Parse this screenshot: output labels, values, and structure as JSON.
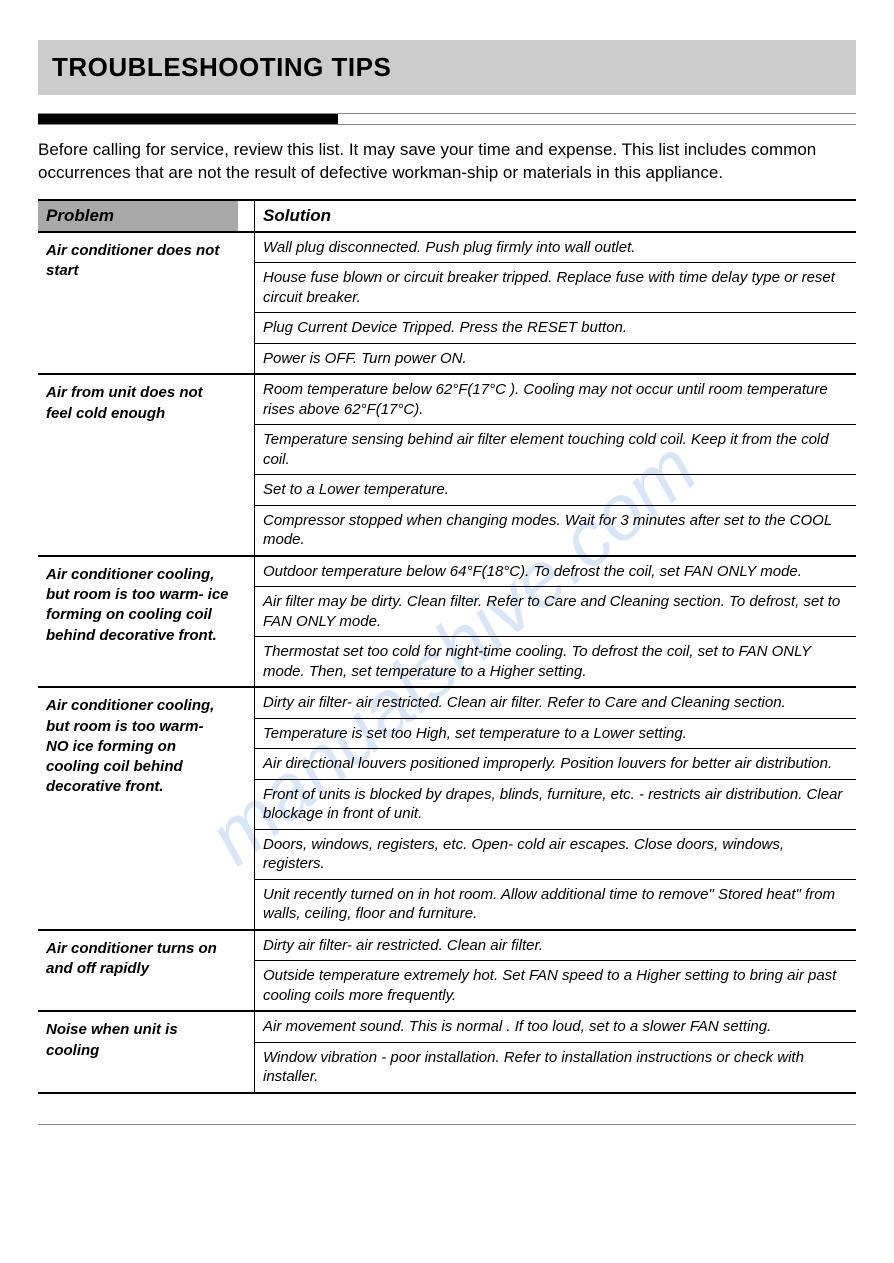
{
  "title": "TROUBLESHOOTING TIPS",
  "intro": "Before calling for service, review this list. It may save your time and expense. This list includes common occurrences that are not the result of defective workman-ship or materials in this appliance.",
  "headers": {
    "problem": "Problem",
    "solution": "Solution"
  },
  "colors": {
    "title_bg": "#cccccc",
    "header_problem_bg": "#a8a8a8",
    "border_heavy": "#000000",
    "border_light": "#888888",
    "watermark": "#7aa8e6"
  },
  "groups": [
    {
      "problem": "Air conditioner does not start",
      "solutions": [
        "Wall plug disconnected. Push plug firmly into wall outlet.",
        "House fuse blown or circuit breaker tripped. Replace fuse with time delay type or reset circuit breaker.",
        "Plug Current Device Tripped. Press the RESET button.",
        "Power is OFF. Turn power ON."
      ]
    },
    {
      "problem": "Air from unit does not feel cold enough",
      "solutions": [
        "Room temperature below 62°F(17°C ). Cooling may not occur until room temperature rises above 62°F(17°C).",
        "Temperature sensing behind air filter element touching cold coil. Keep it from the cold coil.",
        "Set to a Lower temperature.",
        "Compressor stopped when changing modes. Wait for 3 minutes after set to the COOL mode."
      ]
    },
    {
      "problem": "Air conditioner cooling, but room is too warm- ice forming on cooling coil behind decorative front.",
      "solutions": [
        "Outdoor  temperature below 64°F(18°C). To defrost the coil, set FAN ONLY mode.",
        "Air filter may be dirty. Clean filter. Refer to Care and Cleaning section. To defrost, set to FAN ONLY mode.",
        "Thermostat set too cold for night-time cooling. To defrost the coil, set to FAN ONLY mode. Then, set temperature to a Higher setting."
      ]
    },
    {
      "problem": "Air conditioner cooling, but room is too warm- NO ice forming on cooling coil behind decorative front.",
      "solutions": [
        "Dirty air filter- air restricted. Clean air filter. Refer to Care and Cleaning section.",
        "Temperature is set too High, set temperature to a Lower setting.",
        "Air directional louvers positioned improperly. Position louvers for better air distribution.",
        "Front of units is blocked by drapes, blinds, furniture, etc. - restricts air distribution. Clear blockage in front of unit.",
        "Doors, windows, registers, etc. Open- cold air escapes. Close doors, windows, registers.",
        "Unit recently turned on in hot room. Allow additional time to remove\" Stored heat\" from walls, ceiling, floor and furniture."
      ]
    },
    {
      "problem": "Air conditioner turns on and off rapidly",
      "solutions": [
        "Dirty air filter- air restricted. Clean air filter.",
        "Outside temperature extremely hot. Set FAN speed to a Higher setting to bring air past cooling coils more frequently."
      ]
    },
    {
      "problem": "Noise when unit is cooling",
      "solutions": [
        "Air movement sound. This is normal . If too loud, set to a slower  FAN setting.",
        "Window vibration - poor installation. Refer to installation instructions or check with installer."
      ]
    }
  ],
  "watermark_text": "manualshive.com"
}
